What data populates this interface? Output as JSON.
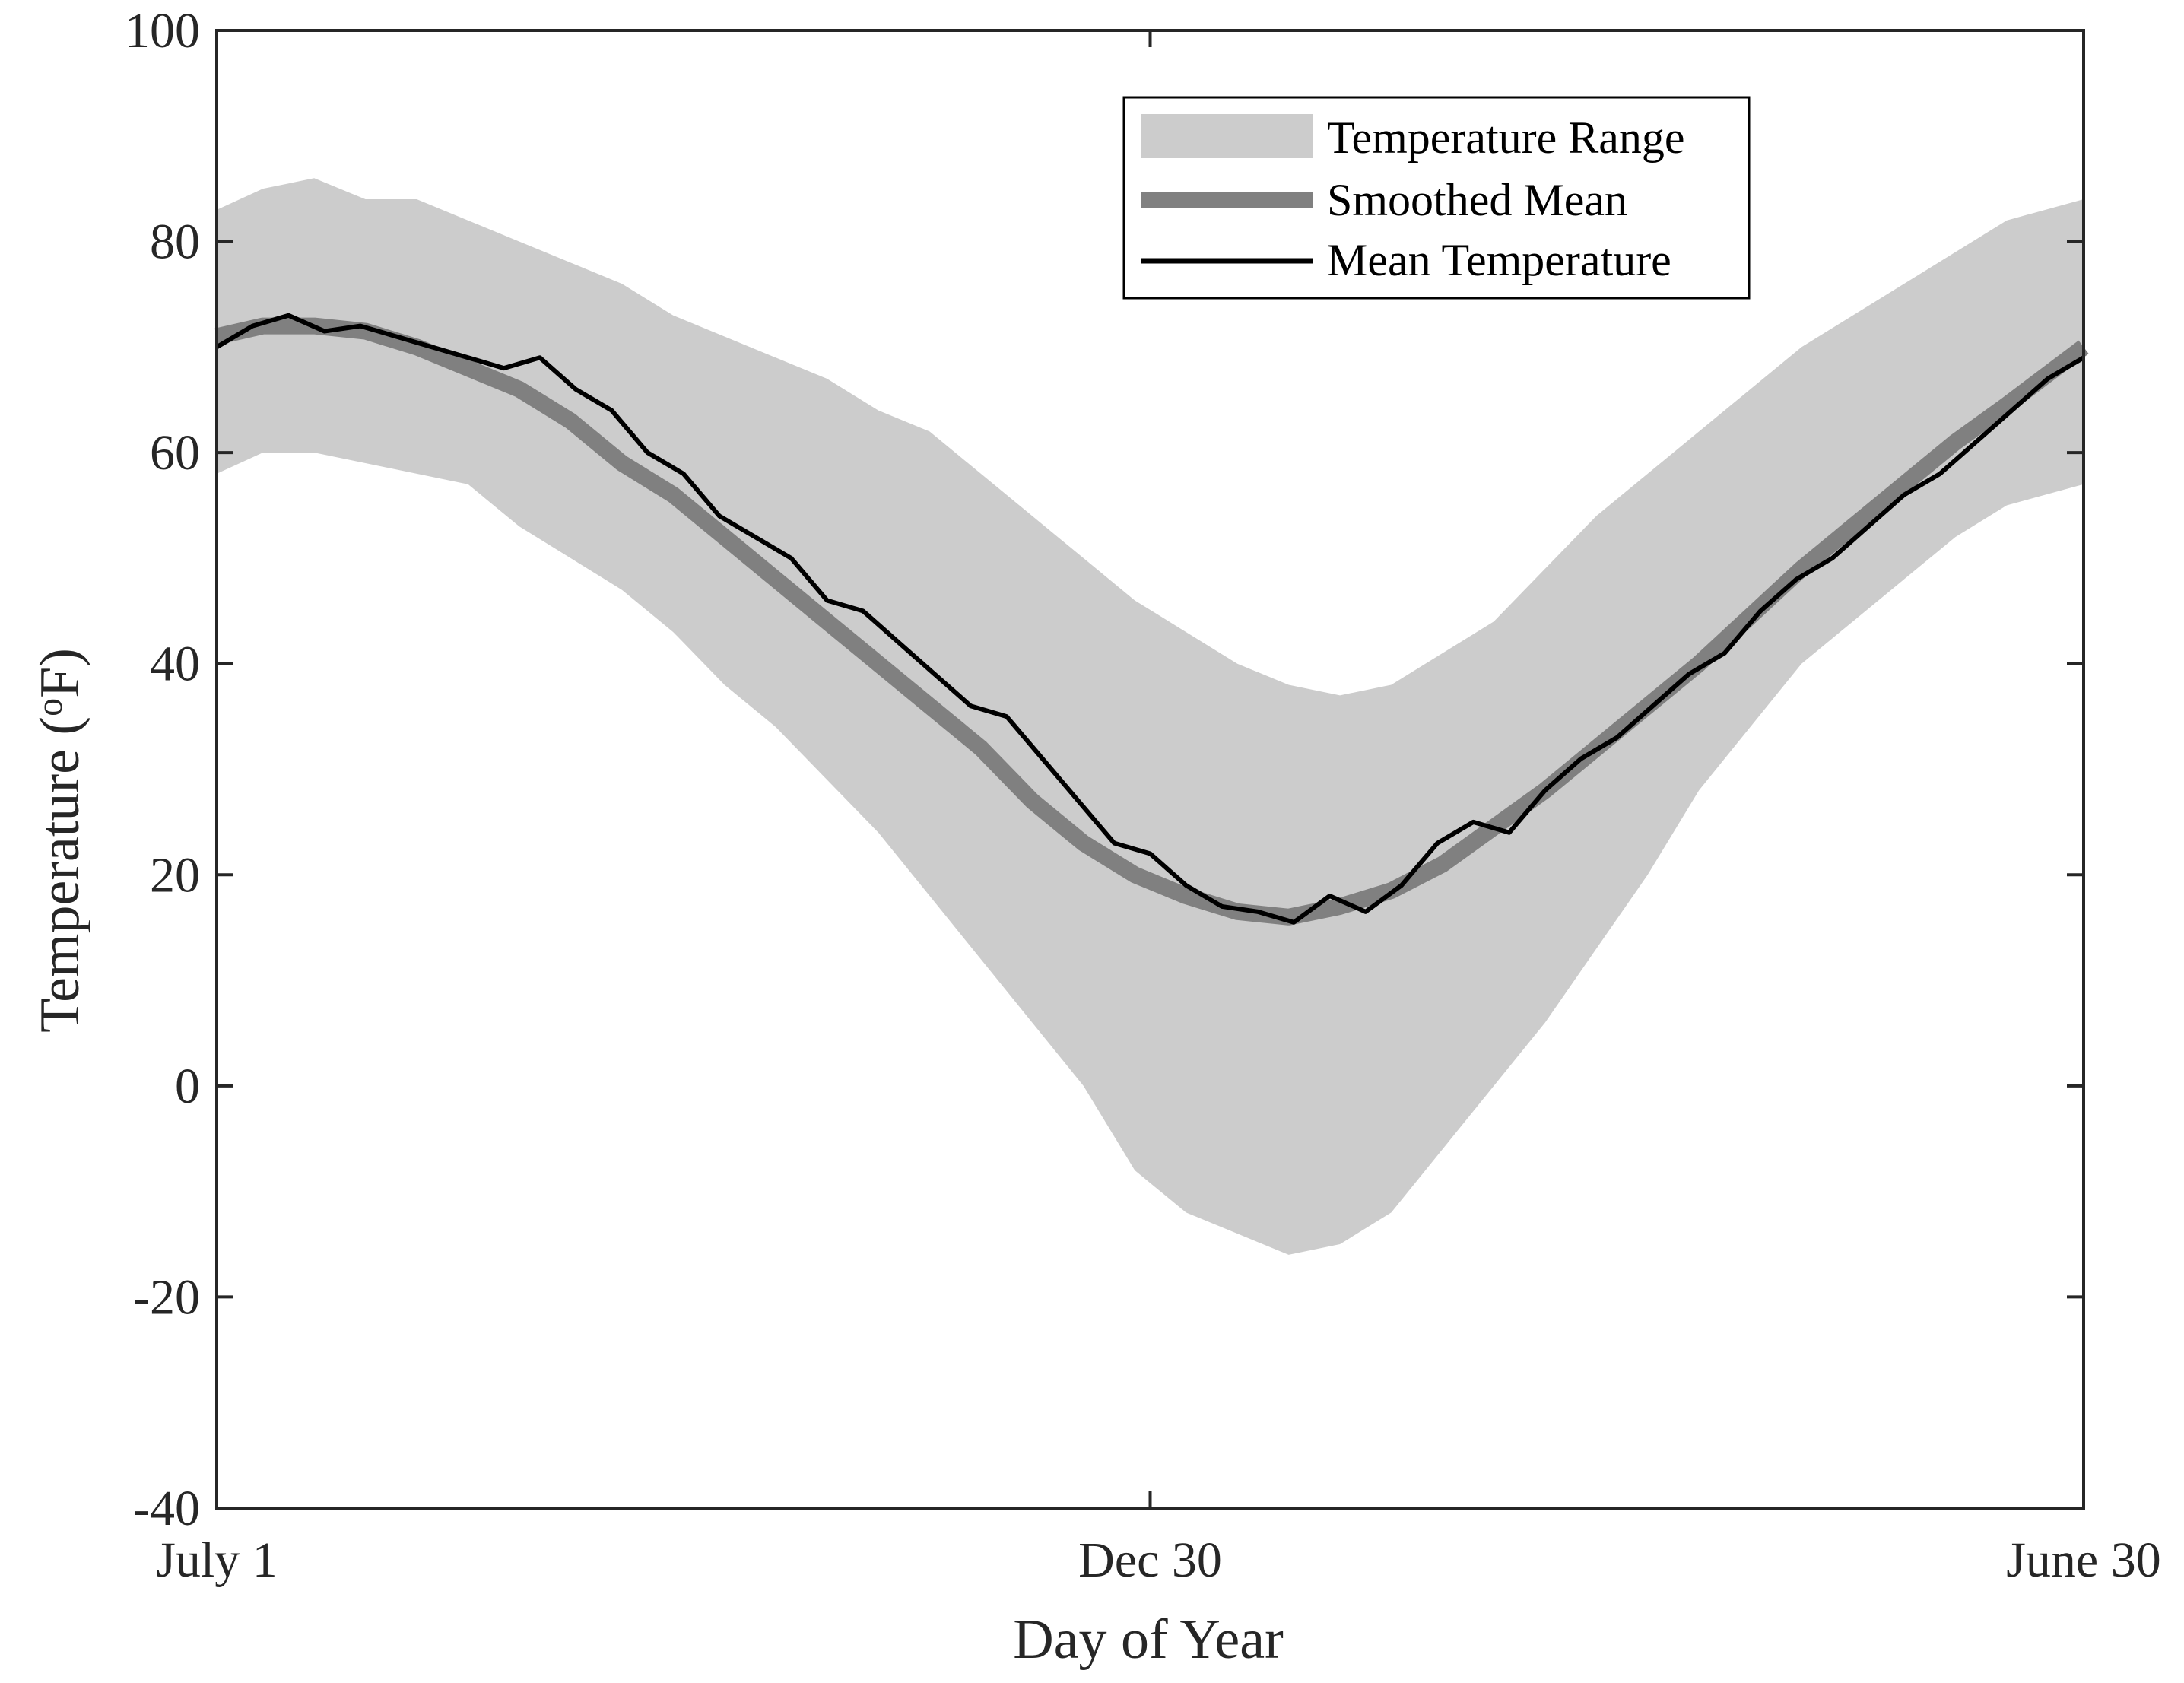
{
  "chart_data": {
    "type": "area",
    "title": "",
    "xlabel": "Day of Year",
    "ylabel_main": "Temperature (",
    "ylabel_sup": "o",
    "ylabel_end": "F)",
    "xlim": [
      1,
      365
    ],
    "ylim": [
      -40,
      100
    ],
    "x_ticks": [
      {
        "value": 1,
        "label": "July 1"
      },
      {
        "value": 183,
        "label": "Dec 30"
      },
      {
        "value": 365,
        "label": "June 30"
      }
    ],
    "y_ticks": [
      {
        "value": -40,
        "label": "-40"
      },
      {
        "value": -20,
        "label": "-20"
      },
      {
        "value": 0,
        "label": "0"
      },
      {
        "value": 20,
        "label": "20"
      },
      {
        "value": 40,
        "label": "40"
      },
      {
        "value": 60,
        "label": "60"
      },
      {
        "value": 80,
        "label": "80"
      },
      {
        "value": 100,
        "label": "100"
      }
    ],
    "grid": false,
    "legend_position": "top-right",
    "colors": {
      "range": "#cccccc",
      "smoothed": "#808080",
      "mean": "#000000",
      "axes": "#262626"
    },
    "series": [
      {
        "name": "Temperature Range",
        "kind": "band",
        "x": [
          1,
          10,
          20,
          30,
          40,
          50,
          60,
          70,
          80,
          90,
          100,
          110,
          120,
          130,
          140,
          150,
          160,
          170,
          180,
          190,
          200,
          210,
          220,
          230,
          240,
          250,
          260,
          270,
          280,
          290,
          300,
          310,
          320,
          330,
          340,
          350,
          365
        ],
        "upper": [
          83,
          85,
          86,
          84,
          84,
          82,
          80,
          78,
          76,
          73,
          71,
          69,
          67,
          64,
          62,
          58,
          54,
          50,
          46,
          43,
          40,
          38,
          37,
          38,
          41,
          44,
          49,
          54,
          58,
          62,
          66,
          70,
          73,
          76,
          79,
          82,
          84
        ],
        "lower": [
          58,
          60,
          60,
          59,
          58,
          57,
          53,
          50,
          47,
          43,
          38,
          34,
          29,
          24,
          18,
          12,
          6,
          0,
          -8,
          -12,
          -14,
          -16,
          -15,
          -12,
          -6,
          0,
          6,
          13,
          20,
          28,
          34,
          40,
          44,
          48,
          52,
          55,
          57
        ]
      },
      {
        "name": "Smoothed Mean",
        "kind": "line",
        "x": [
          1,
          10,
          20,
          30,
          40,
          50,
          60,
          70,
          80,
          90,
          100,
          110,
          120,
          130,
          140,
          150,
          160,
          170,
          180,
          190,
          200,
          210,
          220,
          230,
          240,
          250,
          260,
          270,
          280,
          290,
          300,
          310,
          320,
          330,
          340,
          350,
          365
        ],
        "values": [
          71,
          72,
          72,
          71.5,
          70,
          68,
          66,
          63,
          59,
          56,
          52,
          48,
          44,
          40,
          36,
          32,
          27,
          23,
          20,
          18,
          16.5,
          16,
          17,
          18.5,
          21,
          24.5,
          28,
          32,
          36,
          40,
          44.5,
          49,
          53,
          57,
          61,
          64.5,
          70
        ]
      },
      {
        "name": "Mean Temperature",
        "kind": "line",
        "x": [
          1,
          8,
          15,
          22,
          29,
          36,
          43,
          50,
          57,
          64,
          71,
          78,
          85,
          92,
          99,
          106,
          113,
          120,
          127,
          134,
          141,
          148,
          155,
          162,
          169,
          176,
          183,
          190,
          197,
          204,
          211,
          218,
          225,
          232,
          239,
          246,
          253,
          260,
          267,
          274,
          281,
          288,
          295,
          302,
          309,
          316,
          323,
          330,
          337,
          344,
          351,
          358,
          365
        ],
        "values": [
          70,
          72,
          73,
          71.5,
          72,
          71,
          70,
          69,
          68,
          69,
          66,
          64,
          60,
          58,
          54,
          52,
          50,
          46,
          45,
          42,
          39,
          36,
          35,
          31,
          27,
          23,
          22,
          19,
          17,
          16.5,
          15.5,
          18,
          16.5,
          19,
          23,
          25,
          24,
          28,
          31,
          33,
          36,
          39,
          41,
          45,
          48,
          50,
          53,
          56,
          58,
          61,
          64,
          67,
          69
        ]
      }
    ]
  }
}
